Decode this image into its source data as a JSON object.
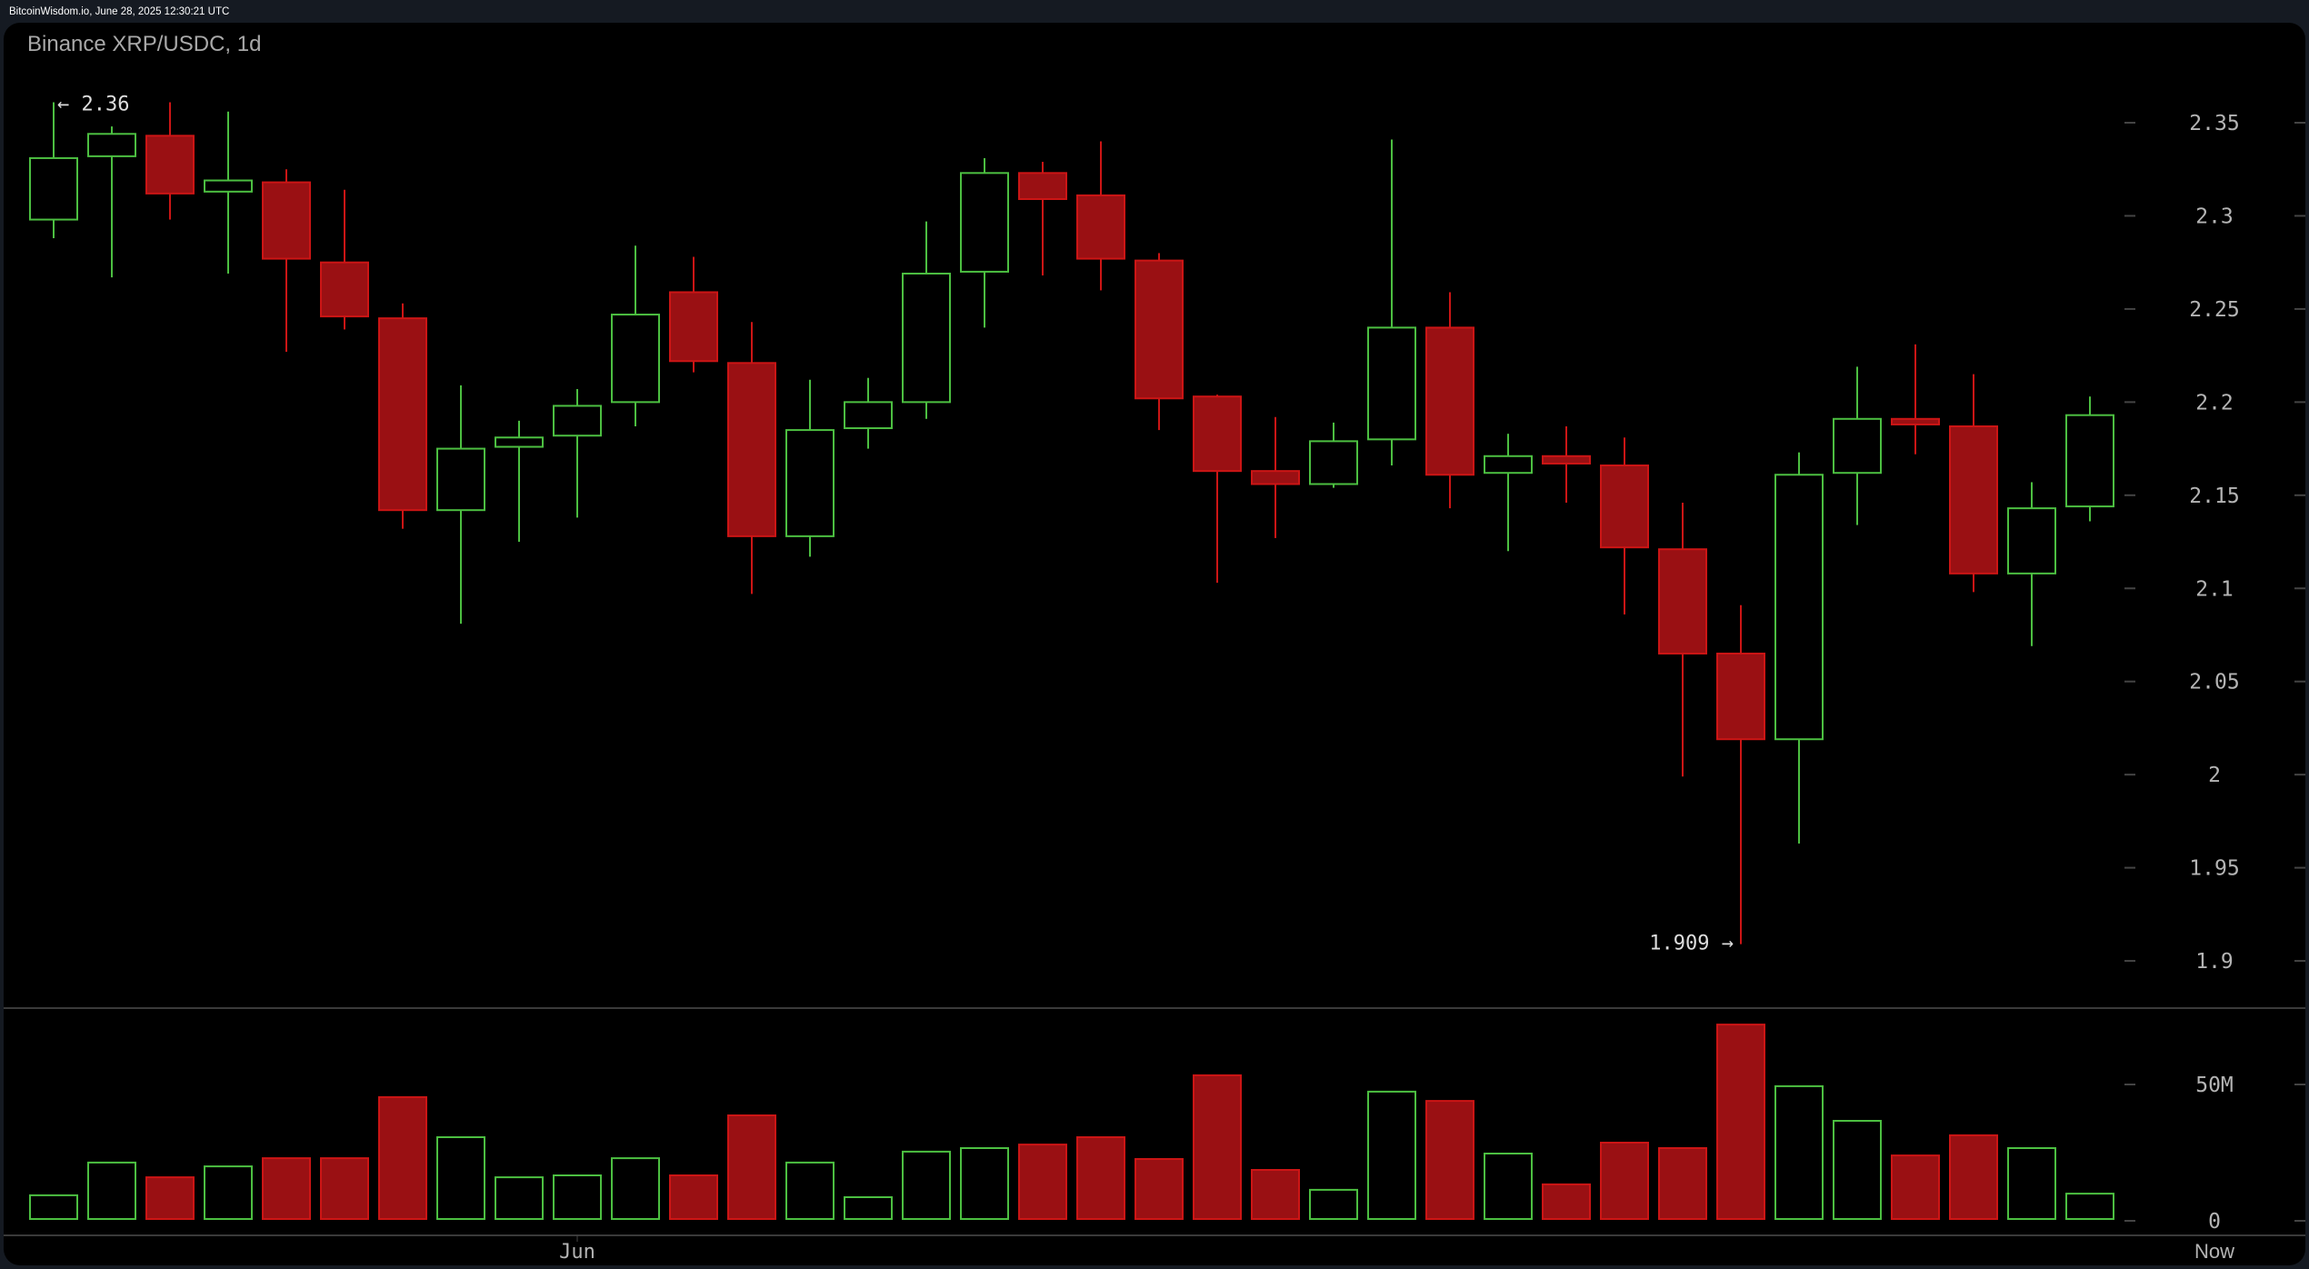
{
  "header": {
    "source_line": "BitcoinWisdom.io, June 28, 2025 12:30:21 UTC"
  },
  "chart": {
    "title": "Binance XRP/USDC, 1d",
    "colors": {
      "up": "#4cbf41",
      "down_border": "#cc1515",
      "down_fill": "#9a1013",
      "axis_text": "#b4b4b4",
      "annotation_text": "#dddddd",
      "divider": "#3a3a3a",
      "tick": "#444444"
    },
    "price_axis_labels": [
      "2.35",
      "2.3",
      "2.25",
      "2.2",
      "2.15",
      "2.1",
      "2.05",
      "2",
      "1.95",
      "1.9"
    ],
    "volume_axis_labels": [
      "50M",
      "0"
    ],
    "time_axis_labels": [
      {
        "label": "Jun",
        "candle_index": 9
      },
      {
        "label": "Now",
        "position": "axis"
      }
    ],
    "annotations": {
      "high_label": "← 2.36",
      "low_label": "1.909 →"
    }
  },
  "chart_data": {
    "type": "candlestick",
    "title": "Binance XRP/USDC, 1d",
    "xlabel": "",
    "ylabel": "",
    "ylim": [
      1.88,
      2.38
    ],
    "volume_ylim": [
      0,
      80
    ],
    "grid": false,
    "price_ticks": [
      2.35,
      2.3,
      2.25,
      2.2,
      2.15,
      2.1,
      2.05,
      2.0,
      1.95,
      1.9
    ],
    "volume_ticks": [
      {
        "value": 50,
        "label": "50M"
      },
      {
        "value": 0,
        "label": "0"
      }
    ],
    "x_tick_labels": [
      "Jun",
      "Now"
    ],
    "annotations": [
      {
        "text": "← 2.36",
        "value": 2.36,
        "candle": 1
      },
      {
        "text": "1.909 →",
        "value": 1.909,
        "candle": 30
      }
    ],
    "candles": [
      {
        "o": 2.298,
        "h": 2.361,
        "l": 2.288,
        "c": 2.331,
        "v": 8.7
      },
      {
        "o": 2.332,
        "h": 2.348,
        "l": 2.267,
        "c": 2.344,
        "v": 20.7
      },
      {
        "o": 2.343,
        "h": 2.361,
        "l": 2.298,
        "c": 2.312,
        "v": 15.3
      },
      {
        "o": 2.313,
        "h": 2.356,
        "l": 2.269,
        "c": 2.319,
        "v": 19.3
      },
      {
        "o": 2.318,
        "h": 2.325,
        "l": 2.227,
        "c": 2.277,
        "v": 22.3
      },
      {
        "o": 2.275,
        "h": 2.314,
        "l": 2.239,
        "c": 2.246,
        "v": 22.3
      },
      {
        "o": 2.245,
        "h": 2.253,
        "l": 2.132,
        "c": 2.142,
        "v": 44.7
      },
      {
        "o": 2.142,
        "h": 2.209,
        "l": 2.081,
        "c": 2.175,
        "v": 30.0
      },
      {
        "o": 2.176,
        "h": 2.19,
        "l": 2.125,
        "c": 2.181,
        "v": 15.3
      },
      {
        "o": 2.182,
        "h": 2.207,
        "l": 2.138,
        "c": 2.198,
        "v": 16.0
      },
      {
        "o": 2.2,
        "h": 2.284,
        "l": 2.187,
        "c": 2.247,
        "v": 22.3
      },
      {
        "o": 2.259,
        "h": 2.278,
        "l": 2.216,
        "c": 2.222,
        "v": 16.0
      },
      {
        "o": 2.221,
        "h": 2.243,
        "l": 2.097,
        "c": 2.128,
        "v": 38.0
      },
      {
        "o": 2.128,
        "h": 2.212,
        "l": 2.117,
        "c": 2.185,
        "v": 20.7
      },
      {
        "o": 2.186,
        "h": 2.213,
        "l": 2.175,
        "c": 2.2,
        "v": 8.0
      },
      {
        "o": 2.2,
        "h": 2.297,
        "l": 2.191,
        "c": 2.269,
        "v": 24.7
      },
      {
        "o": 2.27,
        "h": 2.331,
        "l": 2.24,
        "c": 2.323,
        "v": 26.0
      },
      {
        "o": 2.323,
        "h": 2.329,
        "l": 2.268,
        "c": 2.309,
        "v": 27.3
      },
      {
        "o": 2.311,
        "h": 2.34,
        "l": 2.26,
        "c": 2.277,
        "v": 30.0
      },
      {
        "o": 2.276,
        "h": 2.28,
        "l": 2.185,
        "c": 2.202,
        "v": 22.0
      },
      {
        "o": 2.203,
        "h": 2.204,
        "l": 2.103,
        "c": 2.163,
        "v": 52.7
      },
      {
        "o": 2.163,
        "h": 2.192,
        "l": 2.127,
        "c": 2.156,
        "v": 18.0
      },
      {
        "o": 2.156,
        "h": 2.189,
        "l": 2.154,
        "c": 2.179,
        "v": 10.7
      },
      {
        "o": 2.18,
        "h": 2.341,
        "l": 2.166,
        "c": 2.24,
        "v": 46.7
      },
      {
        "o": 2.24,
        "h": 2.259,
        "l": 2.143,
        "c": 2.161,
        "v": 43.3
      },
      {
        "o": 2.162,
        "h": 2.183,
        "l": 2.12,
        "c": 2.171,
        "v": 24.0
      },
      {
        "o": 2.171,
        "h": 2.187,
        "l": 2.146,
        "c": 2.167,
        "v": 12.7
      },
      {
        "o": 2.166,
        "h": 2.181,
        "l": 2.086,
        "c": 2.122,
        "v": 28.0
      },
      {
        "o": 2.121,
        "h": 2.146,
        "l": 1.999,
        "c": 2.065,
        "v": 26.0
      },
      {
        "o": 2.065,
        "h": 2.091,
        "l": 1.909,
        "c": 2.019,
        "v": 71.3
      },
      {
        "o": 2.019,
        "h": 2.173,
        "l": 1.963,
        "c": 2.161,
        "v": 48.7
      },
      {
        "o": 2.162,
        "h": 2.219,
        "l": 2.134,
        "c": 2.191,
        "v": 36.0
      },
      {
        "o": 2.191,
        "h": 2.231,
        "l": 2.172,
        "c": 2.188,
        "v": 23.3
      },
      {
        "o": 2.187,
        "h": 2.215,
        "l": 2.098,
        "c": 2.108,
        "v": 30.7
      },
      {
        "o": 2.108,
        "h": 2.157,
        "l": 2.069,
        "c": 2.143,
        "v": 26.0
      },
      {
        "o": 2.144,
        "h": 2.203,
        "l": 2.136,
        "c": 2.193,
        "v": 9.3
      }
    ]
  }
}
